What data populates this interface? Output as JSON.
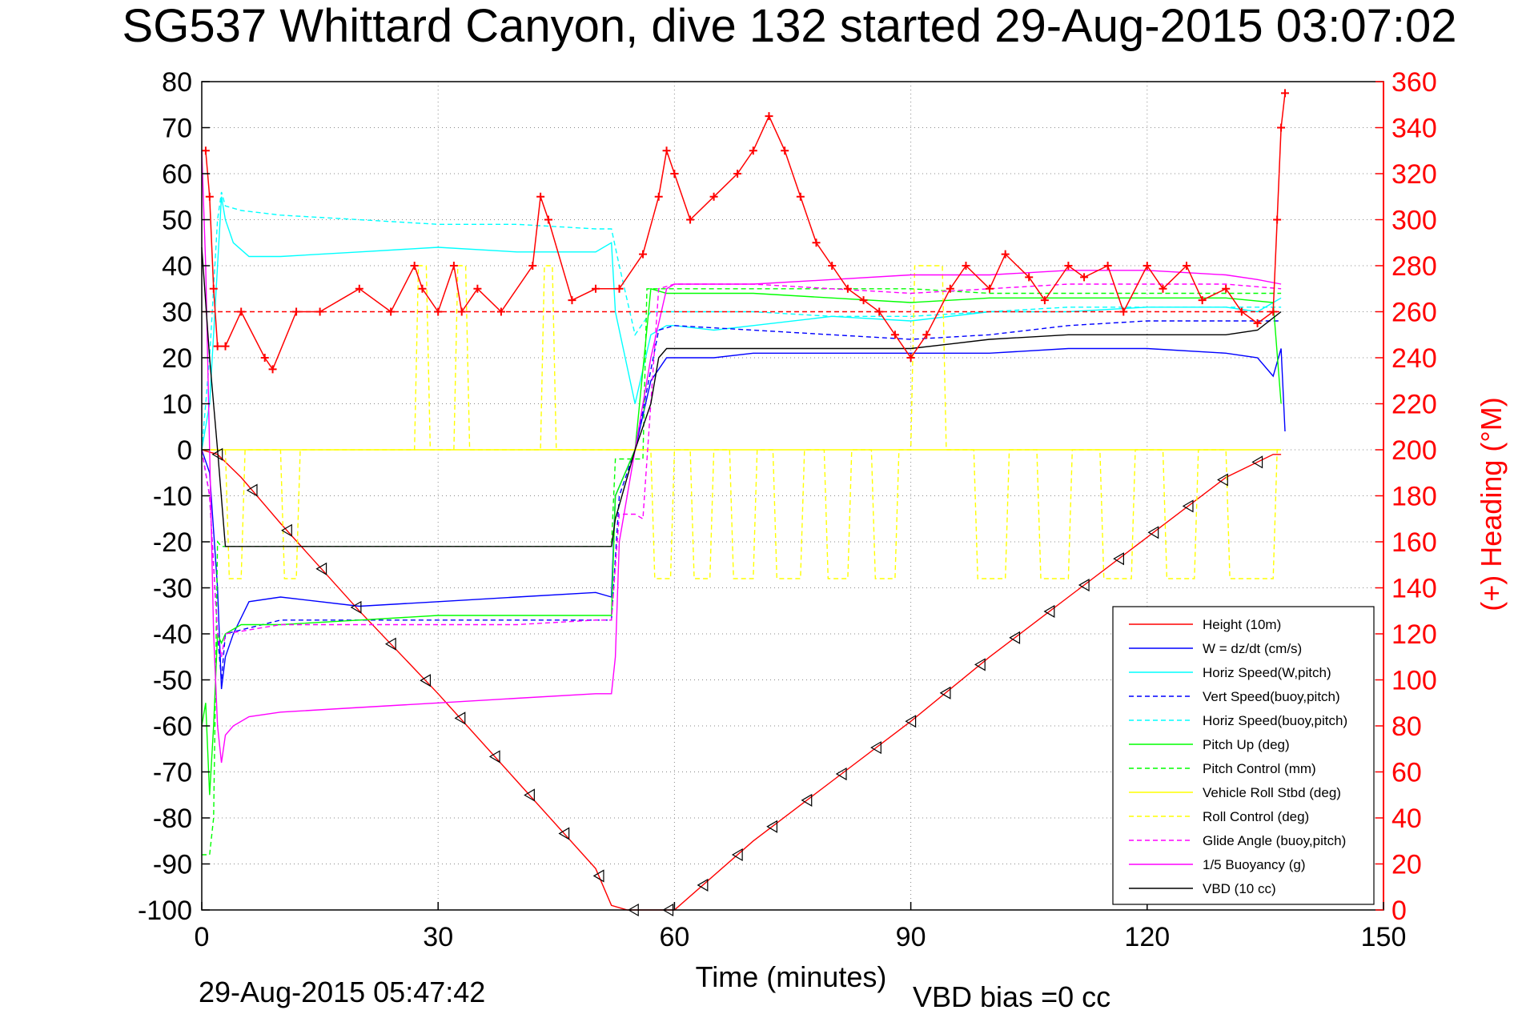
{
  "chart_data": {
    "type": "line",
    "title": "SG537 Whittard Canyon, dive 132 started 29-Aug-2015 03:07:02",
    "xlabel": "Time (minutes)",
    "ylabel_right": "(+) Heading (°M)",
    "footer_left": "29-Aug-2015 05:47:42",
    "footer_right": "VBD bias =0 cc",
    "xlim": [
      0,
      150
    ],
    "ylim": [
      -100,
      80
    ],
    "ylim_right": [
      0,
      360
    ],
    "xticks": [
      0,
      30,
      60,
      90,
      120,
      150
    ],
    "yticks": [
      80,
      70,
      60,
      50,
      40,
      30,
      20,
      10,
      0,
      -10,
      -20,
      -30,
      -40,
      -50,
      -60,
      -70,
      -80,
      -90,
      -100
    ],
    "yticks_right": [
      360,
      340,
      320,
      300,
      280,
      260,
      240,
      220,
      200,
      180,
      160,
      140,
      120,
      100,
      80,
      60,
      40,
      20,
      0
    ],
    "grid": true,
    "legend_position": "bottom-right",
    "colors": {
      "right_axis": "#ff0000",
      "height": "#ff0000",
      "w": "#0000ff",
      "horiz_speed": "#00ffff",
      "pitch": "#00ff00",
      "roll": "#ffff00",
      "glide": "#ff00ff",
      "vbd": "#000000",
      "heading_marker": "#ff0000"
    },
    "legend": [
      "Height (10m)",
      "W = dz/dt (cm/s)",
      "Horiz Speed(W,pitch)",
      "Vert Speed(buoy,pitch)",
      "Horiz Speed(buoy,pitch)",
      "Pitch Up (deg)",
      "Pitch Control (mm)",
      "Vehicle Roll Stbd (deg)",
      "Roll Control (deg)",
      "Glide Angle (buoy,pitch)",
      "1/5 Buoyancy (g)",
      "VBD (10 cc)"
    ],
    "series": [
      {
        "name": "Height (10m)",
        "color": "#ff0000",
        "style": "solid",
        "x": [
          0,
          2,
          5,
          10,
          20,
          30,
          40,
          50,
          52,
          54,
          58,
          60,
          70,
          80,
          90,
          100,
          110,
          120,
          130,
          136,
          137
        ],
        "y": [
          0,
          -1,
          -6,
          -16,
          -35,
          -53,
          -72,
          -91,
          -99,
          -100,
          -100,
          -100,
          -85,
          -72,
          -59,
          -45,
          -32,
          -19,
          -6,
          -1,
          -1
        ]
      },
      {
        "name": "W = dz/dt (cm/s)",
        "color": "#0000ff",
        "style": "solid",
        "x": [
          0,
          1,
          2,
          2.5,
          3,
          4,
          6,
          10,
          20,
          30,
          40,
          50,
          52,
          52.5,
          55,
          57,
          59,
          60,
          65,
          70,
          80,
          90,
          100,
          110,
          120,
          130,
          134,
          136,
          137,
          137.5
        ],
        "y": [
          0,
          -5,
          -30,
          -52,
          -45,
          -40,
          -33,
          -32,
          -34,
          -33,
          -32,
          -31,
          -32,
          -10,
          0,
          15,
          20,
          20,
          20,
          21,
          21,
          21,
          21,
          22,
          22,
          21,
          20,
          16,
          22,
          4
        ]
      },
      {
        "name": "Horiz Speed(W,pitch)",
        "color": "#00ffff",
        "style": "solid",
        "x": [
          0,
          1,
          2,
          2.5,
          3,
          4,
          6,
          10,
          20,
          30,
          40,
          50,
          52,
          52.5,
          55,
          57,
          59,
          60,
          65,
          70,
          80,
          90,
          100,
          110,
          120,
          130,
          134,
          137
        ],
        "y": [
          0,
          10,
          40,
          55,
          50,
          45,
          42,
          42,
          43,
          44,
          43,
          43,
          45,
          30,
          10,
          25,
          27,
          27,
          26,
          27,
          29,
          28,
          30,
          30,
          31,
          31,
          30,
          33
        ]
      },
      {
        "name": "Vert Speed(buoy,pitch)",
        "color": "#0000ff",
        "style": "dash",
        "x": [
          0,
          1,
          2,
          2.5,
          3,
          10,
          20,
          30,
          40,
          50,
          52,
          53,
          55,
          58,
          60,
          70,
          80,
          90,
          100,
          110,
          120,
          130,
          137
        ],
        "y": [
          0,
          -10,
          -40,
          -50,
          -40,
          -37,
          -37,
          -37,
          -37,
          -37,
          -37,
          -10,
          0,
          26,
          27,
          26,
          25,
          24,
          25,
          27,
          28,
          28,
          28
        ]
      },
      {
        "name": "Horiz Speed(buoy,pitch)",
        "color": "#00ffff",
        "style": "dash",
        "x": [
          0,
          1,
          2,
          2.5,
          3,
          5,
          10,
          20,
          30,
          40,
          50,
          52,
          53,
          55,
          57,
          59,
          60,
          70,
          80,
          90,
          100,
          110,
          120,
          130,
          137
        ],
        "y": [
          0,
          20,
          50,
          56,
          53,
          52,
          51,
          50,
          49,
          49,
          48,
          48,
          40,
          25,
          30,
          30,
          30,
          30,
          29,
          29,
          30,
          31,
          31,
          31,
          31
        ]
      },
      {
        "name": "Pitch Up (deg)",
        "color": "#00ff00",
        "style": "solid",
        "x": [
          0,
          0.5,
          1,
          1.5,
          2,
          2.5,
          3,
          5,
          10,
          20,
          30,
          40,
          50,
          52,
          52.5,
          55,
          57,
          59,
          60,
          70,
          80,
          90,
          100,
          110,
          120,
          130,
          136,
          137
        ],
        "y": [
          -60,
          -55,
          -75,
          -60,
          -40,
          -42,
          -40,
          -38,
          -38,
          -37,
          -36,
          -36,
          -36,
          -36,
          -10,
          0,
          35,
          34,
          34,
          34,
          33,
          32,
          33,
          33,
          33,
          33,
          32,
          10
        ]
      },
      {
        "name": "Pitch Control (mm)",
        "color": "#00ff00",
        "style": "dash",
        "x": [
          0,
          0.5,
          1,
          1.5,
          2,
          2.5,
          3,
          10,
          20,
          30,
          40,
          50,
          52,
          52.5,
          56,
          56.5,
          60,
          70,
          80,
          90,
          100,
          110,
          120,
          130,
          137
        ],
        "y": [
          -88,
          -88,
          -88,
          -80,
          -20,
          -21,
          -21,
          -21,
          -21,
          -21,
          -21,
          -21,
          -21,
          -2,
          -2,
          35,
          35,
          35,
          35,
          35,
          34,
          34,
          34,
          34,
          34
        ]
      },
      {
        "name": "Vehicle Roll Stbd (deg)",
        "color": "#ffff00",
        "style": "solid",
        "x": [
          0,
          30,
          52,
          53,
          57,
          60,
          90,
          100,
          120,
          137
        ],
        "y": [
          0,
          0,
          0,
          0,
          0,
          0,
          0,
          0,
          0,
          0
        ]
      },
      {
        "name": "Roll Control (deg)",
        "color": "#ffff00",
        "style": "dash",
        "x": [
          0,
          3,
          3.5,
          5,
          5.5,
          10,
          10.5,
          12,
          12.5,
          27,
          27.5,
          28.5,
          29,
          32,
          32.5,
          33.5,
          34,
          43,
          43.5,
          44.5,
          45,
          57,
          57.5,
          59.5,
          60,
          62,
          62.5,
          64.5,
          65,
          67,
          67.5,
          70,
          70.5,
          72.5,
          73,
          76,
          76.5,
          79,
          79.5,
          82,
          82.5,
          85,
          85.5,
          88,
          88.5,
          90,
          90.5,
          94,
          94.5,
          98,
          98.5,
          102,
          102.5,
          106,
          106.5,
          110,
          110.5,
          114,
          114.5,
          118,
          118.5,
          122,
          122.5,
          126,
          126.5,
          130,
          130.5,
          136,
          136.5,
          137
        ],
        "y": [
          0,
          0,
          -28,
          -28,
          0,
          0,
          -28,
          -28,
          0,
          0,
          40,
          40,
          0,
          0,
          40,
          40,
          0,
          0,
          40,
          40,
          0,
          0,
          -28,
          -28,
          0,
          0,
          -28,
          -28,
          0,
          0,
          -28,
          -28,
          0,
          0,
          -28,
          -28,
          0,
          0,
          -28,
          -28,
          0,
          0,
          -28,
          -28,
          0,
          0,
          40,
          40,
          0,
          0,
          -28,
          -28,
          0,
          0,
          -28,
          -28,
          0,
          0,
          -28,
          -28,
          0,
          0,
          -28,
          -28,
          0,
          0,
          -28,
          -28,
          0,
          0
        ]
      },
      {
        "name": "Glide Angle (buoy,pitch)",
        "color": "#ff00ff",
        "style": "dash",
        "x": [
          0,
          1,
          2,
          2.5,
          3,
          10,
          20,
          30,
          40,
          50,
          52,
          53,
          55,
          56,
          58,
          60,
          70,
          80,
          90,
          100,
          110,
          120,
          130,
          137
        ],
        "y": [
          0,
          -10,
          -40,
          -45,
          -40,
          -38,
          -38,
          -38,
          -38,
          -37,
          -37,
          -14,
          -14,
          -15,
          35,
          36,
          36,
          35,
          34,
          35,
          36,
          36,
          36,
          35
        ]
      },
      {
        "name": "1/5 Buoyancy (g)",
        "color": "#ff00ff",
        "style": "solid",
        "x": [
          0,
          0.5,
          1,
          1.5,
          2,
          2.5,
          3,
          4,
          6,
          10,
          20,
          30,
          40,
          50,
          52,
          52.5,
          53,
          57,
          59,
          60,
          70,
          80,
          90,
          100,
          110,
          120,
          130,
          134,
          137
        ],
        "y": [
          65,
          40,
          0,
          -40,
          -60,
          -68,
          -62,
          -60,
          -58,
          -57,
          -56,
          -55,
          -54,
          -53,
          -53,
          -45,
          -20,
          20,
          35,
          36,
          36,
          37,
          38,
          38,
          39,
          39,
          38,
          37,
          36
        ]
      },
      {
        "name": "VBD (10 cc)",
        "color": "#000000",
        "style": "solid",
        "x": [
          0,
          1,
          2,
          3,
          3.5,
          10,
          20,
          30,
          40,
          50,
          52,
          52.5,
          55,
          57,
          58,
          59,
          60,
          70,
          80,
          90,
          95,
          100,
          110,
          120,
          130,
          134,
          137
        ],
        "y": [
          44,
          20,
          0,
          -21,
          -21,
          -21,
          -21,
          -21,
          -21,
          -21,
          -21,
          -15,
          0,
          10,
          20,
          22,
          22,
          22,
          22,
          22,
          23,
          24,
          25,
          25,
          25,
          26,
          30
        ]
      },
      {
        "name": "VBD center",
        "color": "#ff0000",
        "style": "dash",
        "x": [
          0,
          137
        ],
        "y": [
          30,
          30
        ]
      },
      {
        "name": "Heading",
        "axis": "right",
        "color": "#ff0000",
        "style": "marker",
        "x": [
          0.5,
          1,
          1.5,
          2,
          3,
          5,
          8,
          9,
          12,
          15,
          20,
          24,
          27,
          28,
          30,
          32,
          33,
          35,
          38,
          42,
          43,
          44,
          47,
          50,
          53,
          56,
          58,
          59,
          60,
          62,
          65,
          68,
          70,
          72,
          74,
          76,
          78,
          80,
          82,
          84,
          86,
          88,
          90,
          92,
          95,
          97,
          100,
          102,
          105,
          107,
          110,
          112,
          115,
          117,
          120,
          122,
          125,
          127,
          130,
          132,
          134,
          136,
          136.5,
          137,
          137.5
        ],
        "y": [
          330,
          310,
          270,
          245,
          245,
          260,
          240,
          235,
          260,
          260,
          270,
          260,
          280,
          270,
          260,
          280,
          260,
          270,
          260,
          280,
          310,
          300,
          265,
          270,
          270,
          285,
          310,
          330,
          320,
          300,
          310,
          320,
          330,
          345,
          330,
          310,
          290,
          280,
          270,
          265,
          260,
          250,
          240,
          250,
          270,
          280,
          270,
          285,
          275,
          265,
          280,
          275,
          280,
          260,
          280,
          270,
          280,
          265,
          270,
          260,
          255,
          260,
          300,
          340,
          355
        ]
      }
    ]
  }
}
